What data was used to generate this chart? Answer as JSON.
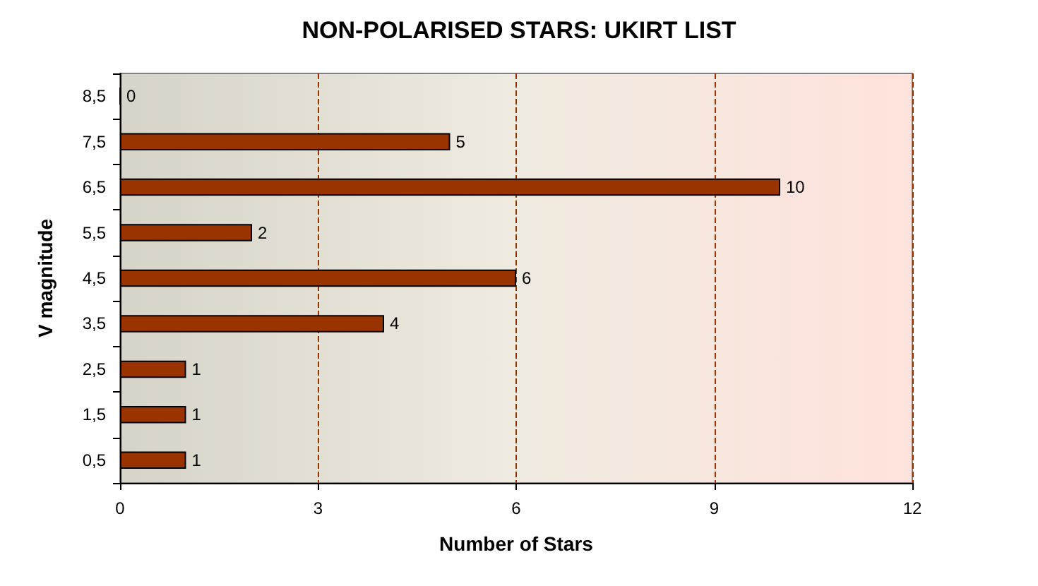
{
  "chart_data": {
    "type": "bar",
    "orientation": "horizontal",
    "title": "NON-POLARISED STARS: UKIRT LIST",
    "xlabel": "Number of Stars",
    "ylabel": "V magnitude",
    "categories": [
      "8,5",
      "7,5",
      "6,5",
      "5,5",
      "4,5",
      "3,5",
      "2,5",
      "1,5",
      "0,5"
    ],
    "values": [
      0,
      5,
      10,
      2,
      6,
      4,
      1,
      1,
      1
    ],
    "color": "#993300",
    "xlim": [
      0,
      12
    ],
    "xticks": [
      0,
      3,
      6,
      9,
      12
    ],
    "grid": "x",
    "line_style": "dashed",
    "data_labels": true
  }
}
